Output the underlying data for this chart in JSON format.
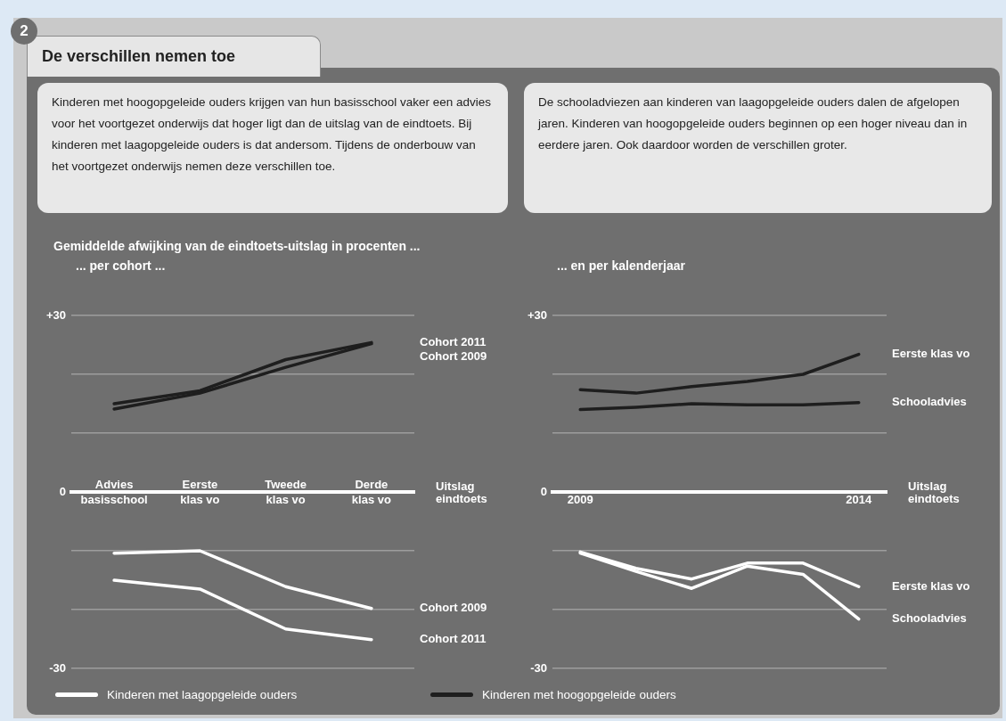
{
  "chart_data": [
    {
      "type": "other",
      "title": "De verschillen nemen toe",
      "annotations": [
        "2",
        "Kinderen met hoogopgeleide ouders krijgen van hun basisschool vaker een advies voor het voortgezet onderwijs dat hoger ligt dan de uitslag van de eindtoets. Bij kinderen met laagopgeleide ouders is dat andersom. Tijdens de onderbouw van het voortgezet onderwijs nemen deze verschillen toe.",
        "De schooladviezen aan kinderen van laagopgeleide ouders dalen de afgelopen jaren. Kinderen van hoogopgeleide ouders beginnen op een hoger niveau dan in eerdere jaren. Ook daardoor worden de verschillen groter."
      ]
    },
    {
      "type": "line",
      "title": "Gemiddelde afwijking van de eindtoets-uitslag  in procenten ...",
      "subtitle": "... per cohort ...",
      "categories": [
        "Advies basisschool",
        "Eerste klas vo",
        "Tweede klas vo",
        "Derde klas vo"
      ],
      "series": [
        {
          "name": "Cohort 2009",
          "color": "#ffffff",
          "values": [
            -10.4,
            -10.0,
            -16.1,
            -19.8
          ]
        },
        {
          "name": "Cohort 2011",
          "color": "#ffffff",
          "values": [
            -15.0,
            -16.5,
            -23.3,
            -25.1
          ]
        },
        {
          "name": "Cohort 2011",
          "color": "#1e1e1e",
          "values": [
            15.0,
            17.2,
            22.5,
            25.4
          ]
        },
        {
          "name": "Cohort 2009",
          "color": "#1e1e1e",
          "values": [
            14.1,
            16.8,
            21.2,
            25.2
          ]
        }
      ],
      "ylim": [
        -30,
        30
      ],
      "yticks": [
        {
          "value": -30,
          "label": "-30"
        },
        {
          "value": -20,
          "label": null
        },
        {
          "value": -10,
          "label": null
        },
        0,
        {
          "value": 10,
          "label": null
        },
        {
          "value": 20,
          "label": null
        },
        {
          "value": 30,
          "label": "+30"
        }
      ],
      "grid": "y",
      "xlabel": "Uitslag eindtoets",
      "annotations": [
        "Kinderen met laagopgeleide ouders",
        "Kinderen met hoogopgeleide ouders"
      ]
    },
    {
      "type": "line",
      "title": "... en per kalenderjaar",
      "categories": [
        "2009",
        null,
        null,
        null,
        null,
        "2014"
      ],
      "series": [
        {
          "name": "Eerste klas vo",
          "color": "#1e1e1e",
          "values": [
            17.4,
            16.8,
            17.9,
            18.8,
            20.0,
            23.4
          ]
        },
        {
          "name": "Schooladvies",
          "color": "#1e1e1e",
          "values": [
            14.0,
            14.4,
            15.0,
            14.8,
            14.8,
            15.2
          ]
        },
        {
          "name": "Eerste klas vo",
          "color": "#ffffff",
          "values": [
            -10.2,
            -13.0,
            -14.8,
            -12.1,
            -12.1,
            -16.1
          ]
        },
        {
          "name": "Schooladvies",
          "color": "#ffffff",
          "values": [
            -10.4,
            -13.5,
            -16.4,
            -12.6,
            -14.0,
            -21.6
          ]
        }
      ],
      "ylim": [
        -30,
        30
      ],
      "yticks": [
        {
          "value": -30,
          "label": "-30"
        },
        {
          "value": -20,
          "label": null
        },
        {
          "value": -10,
          "label": null
        },
        0,
        {
          "value": 10,
          "label": null
        },
        {
          "value": 20,
          "label": null
        },
        {
          "value": 30,
          "label": "+30"
        }
      ],
      "grid": "y",
      "xlabel": "Uitslag eindtoets"
    }
  ]
}
